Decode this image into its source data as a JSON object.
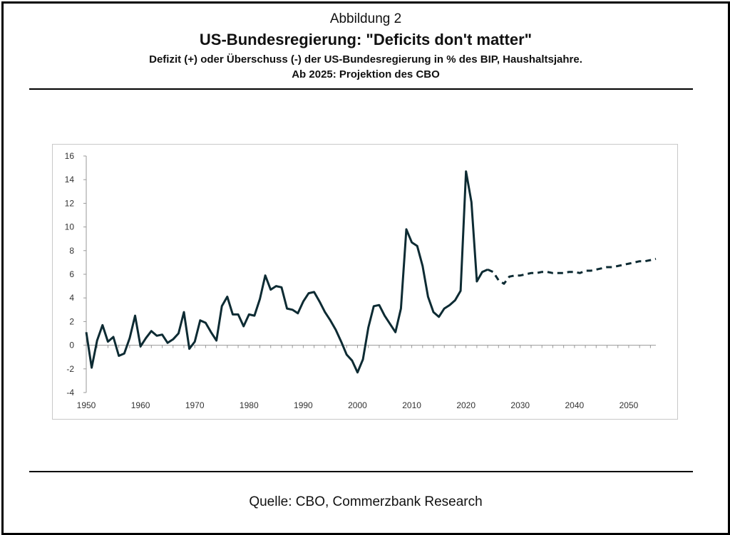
{
  "header": {
    "kicker": "Abbildung 2",
    "title": "US-Bundesregierung: \"Deficits don't matter\"",
    "subtitle_line1": "Defizit (+) oder Überschuss (-) der US-Bundesregierung in % des BIP, Haushaltsjahre.",
    "subtitle_line2": "Ab 2025: Projektion des CBO"
  },
  "footer": {
    "source": "Quelle: CBO, Commerzbank Research"
  },
  "colors": {
    "line": "#0d2b33",
    "axis": "#999999",
    "frame": "#000000"
  },
  "chart_data": {
    "type": "line",
    "xlim": [
      1950,
      2055
    ],
    "ylim": [
      -4,
      16
    ],
    "xticks": [
      1950,
      1960,
      1970,
      1980,
      1990,
      2000,
      2010,
      2020,
      2030,
      2040,
      2050
    ],
    "yticks": [
      -4,
      -2,
      0,
      2,
      4,
      6,
      8,
      10,
      12,
      14,
      16
    ],
    "grid": false,
    "series": [
      {
        "style": "solid",
        "x": [
          1950,
          1951,
          1952,
          1953,
          1954,
          1955,
          1956,
          1957,
          1958,
          1959,
          1960,
          1961,
          1962,
          1963,
          1964,
          1965,
          1966,
          1967,
          1968,
          1969,
          1970,
          1971,
          1972,
          1973,
          1974,
          1975,
          1976,
          1977,
          1978,
          1979,
          1980,
          1981,
          1982,
          1983,
          1984,
          1985,
          1986,
          1987,
          1988,
          1989,
          1990,
          1991,
          1992,
          1993,
          1994,
          1995,
          1996,
          1997,
          1998,
          1999,
          2000,
          2001,
          2002,
          2003,
          2004,
          2005,
          2006,
          2007,
          2008,
          2009,
          2010,
          2011,
          2012,
          2013,
          2014,
          2015,
          2016,
          2017,
          2018,
          2019,
          2020,
          2021,
          2022,
          2023,
          2024
        ],
        "values": [
          1.1,
          -1.9,
          0.4,
          1.7,
          0.3,
          0.7,
          -0.9,
          -0.7,
          0.6,
          2.5,
          -0.1,
          0.6,
          1.2,
          0.8,
          0.9,
          0.2,
          0.5,
          1.0,
          2.8,
          -0.3,
          0.3,
          2.1,
          1.9,
          1.1,
          0.4,
          3.3,
          4.1,
          2.6,
          2.6,
          1.6,
          2.6,
          2.5,
          3.9,
          5.9,
          4.7,
          5.0,
          4.9,
          3.1,
          3.0,
          2.7,
          3.7,
          4.4,
          4.5,
          3.7,
          2.8,
          2.1,
          1.3,
          0.3,
          -0.8,
          -1.3,
          -2.3,
          -1.2,
          1.5,
          3.3,
          3.4,
          2.5,
          1.8,
          1.1,
          3.1,
          9.8,
          8.7,
          8.4,
          6.7,
          4.1,
          2.8,
          2.4,
          3.1,
          3.4,
          3.8,
          4.6,
          14.7,
          12.1,
          5.4,
          6.2,
          6.4
        ]
      },
      {
        "style": "dashed",
        "x": [
          2024,
          2025,
          2026,
          2027,
          2028,
          2029,
          2030,
          2031,
          2032,
          2033,
          2034,
          2035,
          2036,
          2037,
          2038,
          2039,
          2040,
          2041,
          2042,
          2043,
          2044,
          2045,
          2046,
          2047,
          2048,
          2049,
          2050,
          2051,
          2052,
          2053,
          2054,
          2055
        ],
        "values": [
          6.4,
          6.2,
          5.5,
          5.2,
          5.8,
          5.9,
          5.9,
          6.0,
          6.1,
          6.1,
          6.2,
          6.2,
          6.1,
          6.1,
          6.1,
          6.2,
          6.2,
          6.1,
          6.3,
          6.3,
          6.4,
          6.5,
          6.6,
          6.6,
          6.7,
          6.8,
          6.9,
          7.0,
          7.1,
          7.1,
          7.2,
          7.3
        ]
      }
    ]
  }
}
